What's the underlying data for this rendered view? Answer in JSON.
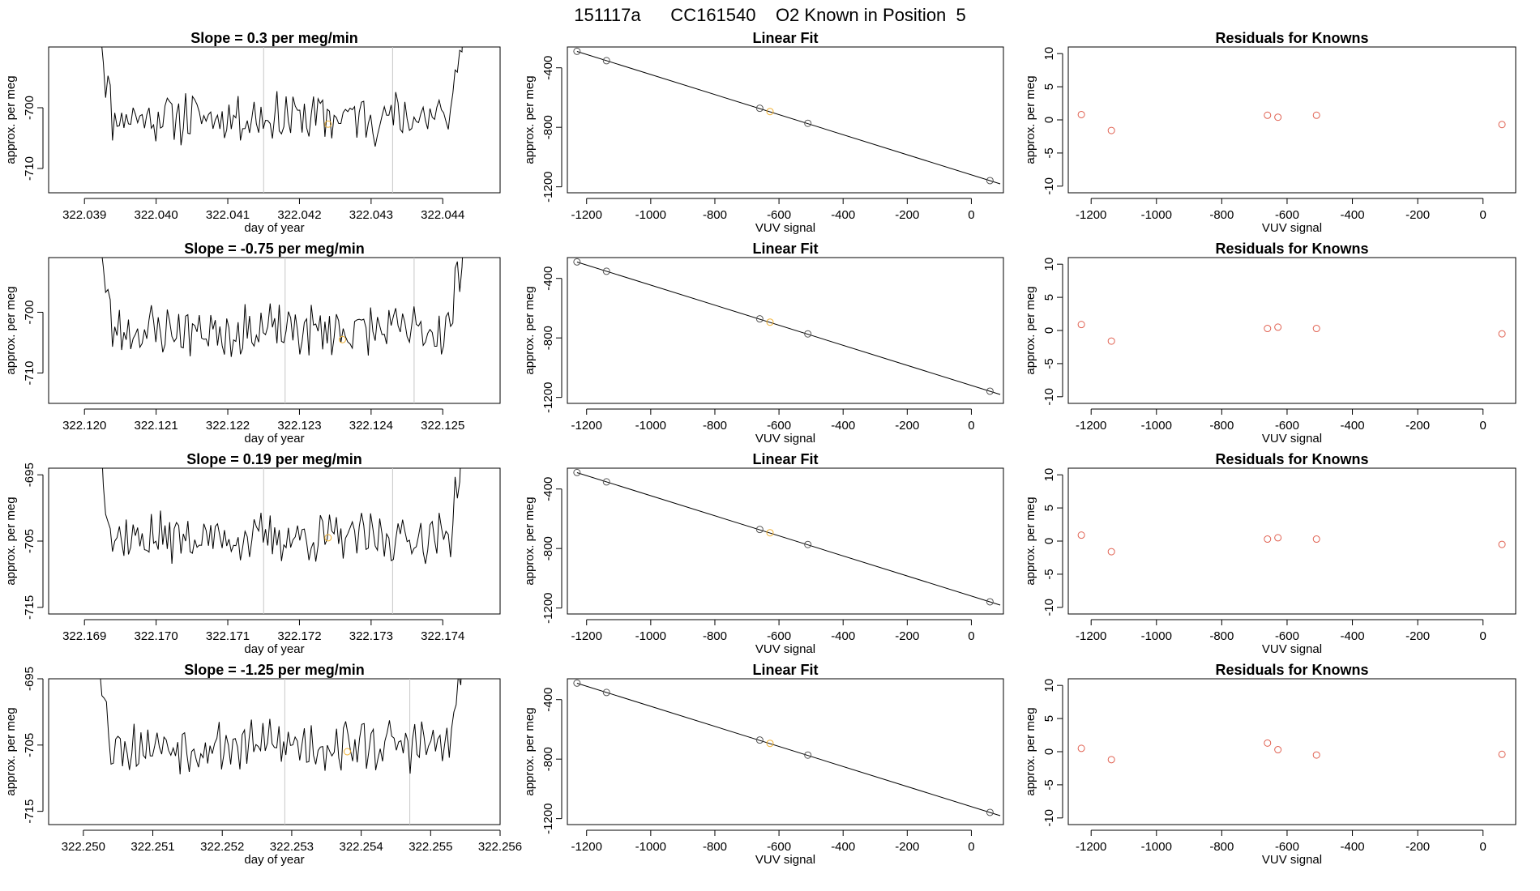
{
  "main_title": "151117a      CC161540    O2 Known in Position  5",
  "colors": {
    "trace": "#000000",
    "guide_line": "#c8c8c8",
    "highlight": "#f0b030",
    "known_point": "#555555",
    "residual_point": "#e06050"
  },
  "chart_data": [
    {
      "type": "line",
      "panel": "time_series",
      "row": 1,
      "title": "Slope =  0.3  per meg/min",
      "xlabel": "day of year",
      "ylabel": "approx. per meg",
      "xlim": [
        322.0385,
        322.0448
      ],
      "ylim": [
        -714,
        -690
      ],
      "xticks": [
        322.039,
        322.04,
        322.041,
        322.042,
        322.043,
        322.044
      ],
      "xtick_labels": [
        "322.039",
        "322.040",
        "322.041",
        "322.042",
        "322.043",
        "322.044"
      ],
      "yticks": [
        -710,
        -700
      ],
      "ytick_labels": [
        "-710",
        "-700"
      ],
      "vlines": [
        322.0415,
        322.0433
      ],
      "highlight_point": {
        "x": 322.0424,
        "y": -702.7
      },
      "trace_start": 322.0392,
      "trace_end": 322.0443,
      "trace_mean": -701.5,
      "trace_amp": 3.5,
      "seed": 11
    },
    {
      "type": "scatter",
      "panel": "linear_fit",
      "row": 1,
      "title": "Linear Fit",
      "xlabel": "VUV signal",
      "ylabel": "approx. per meg",
      "xlim": [
        -1260,
        100
      ],
      "ylim": [
        -1240,
        -260
      ],
      "xticks": [
        -1200,
        -1000,
        -800,
        -600,
        -400,
        -200,
        0
      ],
      "xtick_labels": [
        "-1200",
        "-1000",
        "-800",
        "-600",
        "-400",
        "-200",
        "0"
      ],
      "yticks": [
        -1200,
        -800,
        -400
      ],
      "ytick_labels": [
        "-1200",
        "-800",
        "-400"
      ],
      "fit_line": {
        "x": [
          -1230,
          90
        ],
        "y": [
          -290,
          -1180
        ]
      },
      "points": [
        {
          "x": -1230,
          "y": -289
        },
        {
          "x": -1138,
          "y": -352
        },
        {
          "x": -660,
          "y": -672
        },
        {
          "x": -510,
          "y": -773
        },
        {
          "x": 58,
          "y": -1158
        }
      ],
      "highlight_point": {
        "x": -628,
        "y": -694
      }
    },
    {
      "type": "scatter",
      "panel": "residuals",
      "row": 1,
      "title": "Residuals for Knowns",
      "xlabel": "VUV signal",
      "ylabel": "approx. per meg",
      "xlim": [
        -1270,
        100
      ],
      "ylim": [
        -11,
        11
      ],
      "xticks": [
        -1200,
        -1000,
        -800,
        -600,
        -400,
        -200,
        0
      ],
      "xtick_labels": [
        "-1200",
        "-1000",
        "-800",
        "-600",
        "-400",
        "-200",
        "0"
      ],
      "yticks": [
        -10,
        -5,
        0,
        5,
        10
      ],
      "ytick_labels": [
        "-10",
        "-5",
        "0",
        "5",
        "10"
      ],
      "points": [
        {
          "x": -1230,
          "y": 0.8
        },
        {
          "x": -1138,
          "y": -1.6
        },
        {
          "x": -660,
          "y": 0.7
        },
        {
          "x": -628,
          "y": 0.4
        },
        {
          "x": -510,
          "y": 0.7
        },
        {
          "x": 58,
          "y": -0.7
        }
      ]
    },
    {
      "type": "line",
      "panel": "time_series",
      "row": 2,
      "title": "Slope =  -0.75  per meg/min",
      "xlabel": "day of year",
      "ylabel": "approx. per meg",
      "xlim": [
        322.1195,
        322.1258
      ],
      "ylim": [
        -715,
        -691
      ],
      "xticks": [
        322.12,
        322.121,
        322.122,
        322.123,
        322.124,
        322.125
      ],
      "xtick_labels": [
        "322.120",
        "322.121",
        "322.122",
        "322.123",
        "322.124",
        "322.125"
      ],
      "yticks": [
        -710,
        -700
      ],
      "ytick_labels": [
        "-710",
        "-700"
      ],
      "vlines": [
        322.1228,
        322.1246
      ],
      "highlight_point": {
        "x": 322.1236,
        "y": -704.5
      },
      "trace_start": 322.1202,
      "trace_end": 322.1253,
      "trace_mean": -703.0,
      "trace_amp": 3.5,
      "seed": 23
    },
    {
      "type": "scatter",
      "panel": "linear_fit",
      "row": 2,
      "title": "Linear Fit",
      "xlabel": "VUV signal",
      "ylabel": "approx. per meg",
      "xlim": [
        -1260,
        100
      ],
      "ylim": [
        -1240,
        -260
      ],
      "xticks": [
        -1200,
        -1000,
        -800,
        -600,
        -400,
        -200,
        0
      ],
      "xtick_labels": [
        "-1200",
        "-1000",
        "-800",
        "-600",
        "-400",
        "-200",
        "0"
      ],
      "yticks": [
        -1200,
        -800,
        -400
      ],
      "ytick_labels": [
        "-1200",
        "-800",
        "-400"
      ],
      "fit_line": {
        "x": [
          -1230,
          90
        ],
        "y": [
          -290,
          -1180
        ]
      },
      "points": [
        {
          "x": -1230,
          "y": -289
        },
        {
          "x": -1138,
          "y": -352
        },
        {
          "x": -660,
          "y": -672
        },
        {
          "x": -510,
          "y": -773
        },
        {
          "x": 58,
          "y": -1158
        }
      ],
      "highlight_point": {
        "x": -628,
        "y": -694
      }
    },
    {
      "type": "scatter",
      "panel": "residuals",
      "row": 2,
      "title": "Residuals for Knowns",
      "xlabel": "VUV signal",
      "ylabel": "approx. per meg",
      "xlim": [
        -1270,
        100
      ],
      "ylim": [
        -11,
        11
      ],
      "xticks": [
        -1200,
        -1000,
        -800,
        -600,
        -400,
        -200,
        0
      ],
      "xtick_labels": [
        "-1200",
        "-1000",
        "-800",
        "-600",
        "-400",
        "-200",
        "0"
      ],
      "yticks": [
        -10,
        -5,
        0,
        5,
        10
      ],
      "ytick_labels": [
        "-10",
        "-5",
        "0",
        "5",
        "10"
      ],
      "points": [
        {
          "x": -1230,
          "y": 0.9
        },
        {
          "x": -1138,
          "y": -1.6
        },
        {
          "x": -660,
          "y": 0.3
        },
        {
          "x": -628,
          "y": 0.5
        },
        {
          "x": -510,
          "y": 0.3
        },
        {
          "x": 58,
          "y": -0.5
        }
      ]
    },
    {
      "type": "line",
      "panel": "time_series",
      "row": 3,
      "title": "Slope =  0.19  per meg/min",
      "xlabel": "day of year",
      "ylabel": "approx. per meg",
      "xlim": [
        322.1685,
        322.1748
      ],
      "ylim": [
        -716,
        -694
      ],
      "xticks": [
        322.169,
        322.17,
        322.171,
        322.172,
        322.173,
        322.174
      ],
      "xtick_labels": [
        "322.169",
        "322.170",
        "322.171",
        "322.172",
        "322.173",
        "322.174"
      ],
      "yticks": [
        -715,
        -705,
        -695
      ],
      "ytick_labels": [
        "-715",
        "-705",
        "-695"
      ],
      "vlines": [
        322.1715,
        322.1733
      ],
      "highlight_point": {
        "x": 322.1724,
        "y": -704.5
      },
      "trace_start": 322.1692,
      "trace_end": 322.1743,
      "trace_mean": -704.5,
      "trace_amp": 3.0,
      "seed": 37
    },
    {
      "type": "scatter",
      "panel": "linear_fit",
      "row": 3,
      "title": "Linear Fit",
      "xlabel": "VUV signal",
      "ylabel": "approx. per meg",
      "xlim": [
        -1260,
        100
      ],
      "ylim": [
        -1240,
        -260
      ],
      "xticks": [
        -1200,
        -1000,
        -800,
        -600,
        -400,
        -200,
        0
      ],
      "xtick_labels": [
        "-1200",
        "-1000",
        "-800",
        "-600",
        "-400",
        "-200",
        "0"
      ],
      "yticks": [
        -1200,
        -800,
        -400
      ],
      "ytick_labels": [
        "-1200",
        "-800",
        "-400"
      ],
      "fit_line": {
        "x": [
          -1230,
          90
        ],
        "y": [
          -290,
          -1180
        ]
      },
      "points": [
        {
          "x": -1230,
          "y": -289
        },
        {
          "x": -1138,
          "y": -352
        },
        {
          "x": -660,
          "y": -672
        },
        {
          "x": -510,
          "y": -773
        },
        {
          "x": 58,
          "y": -1158
        }
      ],
      "highlight_point": {
        "x": -628,
        "y": -694
      }
    },
    {
      "type": "scatter",
      "panel": "residuals",
      "row": 3,
      "title": "Residuals for Knowns",
      "xlabel": "VUV signal",
      "ylabel": "approx. per meg",
      "xlim": [
        -1270,
        100
      ],
      "ylim": [
        -11,
        11
      ],
      "xticks": [
        -1200,
        -1000,
        -800,
        -600,
        -400,
        -200,
        0
      ],
      "xtick_labels": [
        "-1200",
        "-1000",
        "-800",
        "-600",
        "-400",
        "-200",
        "0"
      ],
      "yticks": [
        -10,
        -5,
        0,
        5,
        10
      ],
      "ytick_labels": [
        "-10",
        "-5",
        "0",
        "5",
        "10"
      ],
      "points": [
        {
          "x": -1230,
          "y": 0.9
        },
        {
          "x": -1138,
          "y": -1.6
        },
        {
          "x": -660,
          "y": 0.3
        },
        {
          "x": -628,
          "y": 0.5
        },
        {
          "x": -510,
          "y": 0.3
        },
        {
          "x": 58,
          "y": -0.5
        }
      ]
    },
    {
      "type": "line",
      "panel": "time_series",
      "row": 4,
      "title": "Slope =  -1.25  per meg/min",
      "xlabel": "day of year",
      "ylabel": "approx. per meg",
      "xlim": [
        322.2495,
        322.256
      ],
      "ylim": [
        -717,
        -695
      ],
      "xticks": [
        322.25,
        322.251,
        322.252,
        322.253,
        322.254,
        322.255,
        322.256
      ],
      "xtick_labels": [
        "322.250",
        "322.251",
        "322.252",
        "322.253",
        "322.254",
        "322.255",
        "322.256"
      ],
      "yticks": [
        -715,
        -705,
        -695
      ],
      "ytick_labels": [
        "-715",
        "-705",
        "-695"
      ],
      "vlines": [
        322.2529,
        322.2547
      ],
      "highlight_point": {
        "x": 322.2538,
        "y": -706.0
      },
      "trace_start": 322.2502,
      "trace_end": 322.2555,
      "trace_mean": -705.0,
      "trace_amp": 3.2,
      "seed": 53
    },
    {
      "type": "scatter",
      "panel": "linear_fit",
      "row": 4,
      "title": "Linear Fit",
      "xlabel": "VUV signal",
      "ylabel": "approx. per meg",
      "xlim": [
        -1260,
        100
      ],
      "ylim": [
        -1240,
        -260
      ],
      "xticks": [
        -1200,
        -1000,
        -800,
        -600,
        -400,
        -200,
        0
      ],
      "xtick_labels": [
        "-1200",
        "-1000",
        "-800",
        "-600",
        "-400",
        "-200",
        "0"
      ],
      "yticks": [
        -1200,
        -800,
        -400
      ],
      "ytick_labels": [
        "-1200",
        "-800",
        "-400"
      ],
      "fit_line": {
        "x": [
          -1230,
          90
        ],
        "y": [
          -290,
          -1180
        ]
      },
      "points": [
        {
          "x": -1230,
          "y": -289
        },
        {
          "x": -1138,
          "y": -352
        },
        {
          "x": -660,
          "y": -672
        },
        {
          "x": -510,
          "y": -773
        },
        {
          "x": 58,
          "y": -1158
        }
      ],
      "highlight_point": {
        "x": -628,
        "y": -694
      }
    },
    {
      "type": "scatter",
      "panel": "residuals",
      "row": 4,
      "title": "Residuals for Knowns",
      "xlabel": "VUV signal",
      "ylabel": "approx. per meg",
      "xlim": [
        -1270,
        100
      ],
      "ylim": [
        -11,
        11
      ],
      "xticks": [
        -1200,
        -1000,
        -800,
        -600,
        -400,
        -200,
        0
      ],
      "xtick_labels": [
        "-1200",
        "-1000",
        "-800",
        "-600",
        "-400",
        "-200",
        "0"
      ],
      "yticks": [
        -10,
        -5,
        0,
        5,
        10
      ],
      "ytick_labels": [
        "-10",
        "-5",
        "0",
        "5",
        "10"
      ],
      "points": [
        {
          "x": -1230,
          "y": 0.5
        },
        {
          "x": -1138,
          "y": -1.2
        },
        {
          "x": -660,
          "y": 1.3
        },
        {
          "x": -628,
          "y": 0.3
        },
        {
          "x": -510,
          "y": -0.5
        },
        {
          "x": 58,
          "y": -0.4
        }
      ]
    }
  ]
}
